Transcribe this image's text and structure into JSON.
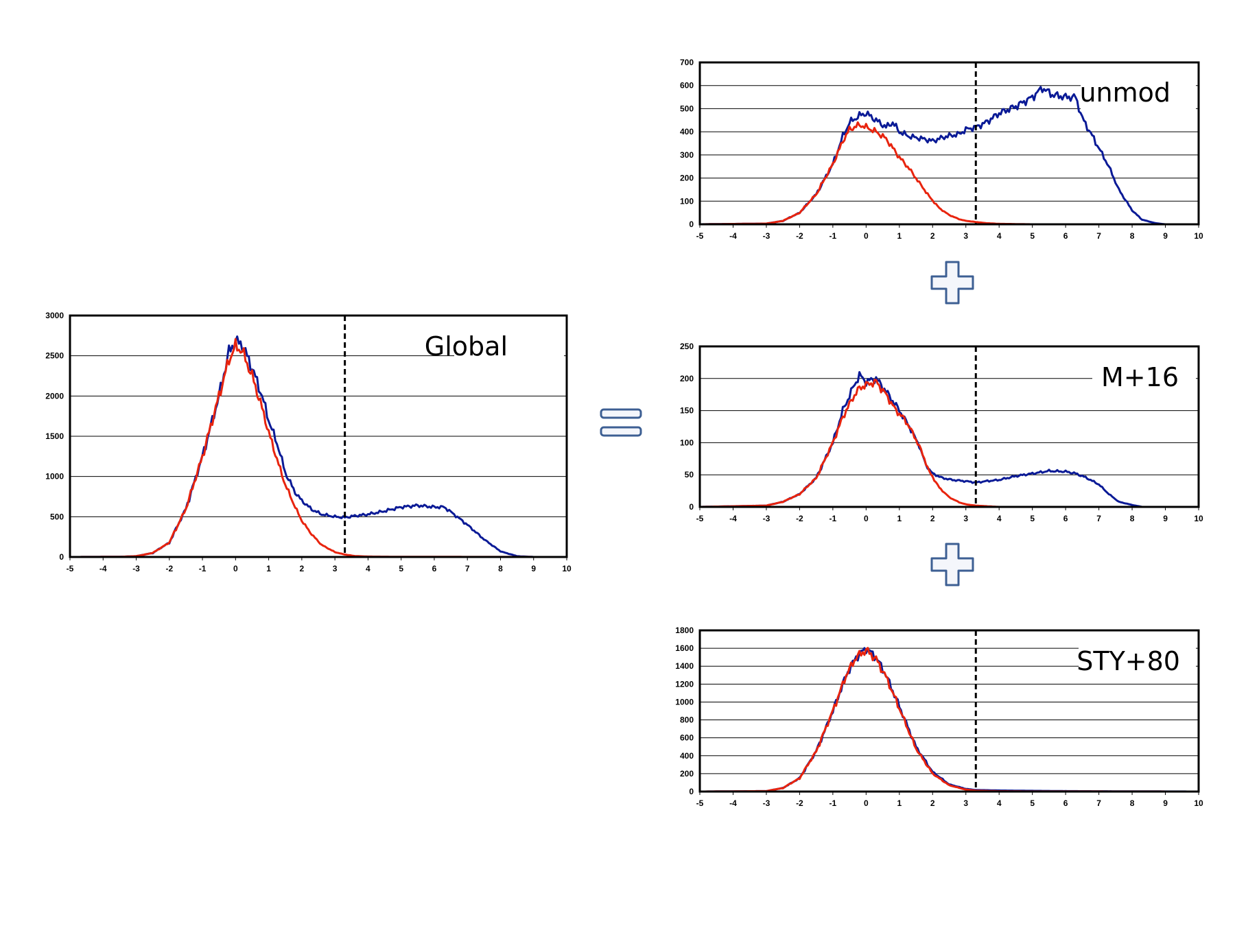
{
  "colors": {
    "blue": "#0a1a96",
    "red": "#e8240e",
    "symbol_fill": "#f4f6fb",
    "symbol_stroke": "#3d5f93"
  },
  "symbols": {
    "equals": "equals-icon",
    "plus": "plus-icon"
  },
  "charts": [
    {
      "id": "global",
      "type": "line",
      "label": "Global",
      "xlim": [
        -5,
        10
      ],
      "xticks": [
        -5,
        -4,
        -3,
        -2,
        -1,
        0,
        1,
        2,
        3,
        4,
        5,
        6,
        7,
        8,
        9,
        10
      ],
      "ylim": [
        0,
        3000
      ],
      "yticks": [
        0,
        500,
        1000,
        1500,
        2000,
        2500,
        3000
      ],
      "vline_x": 3.3,
      "series": [
        {
          "color": "blue",
          "points": [
            [
              -5,
              0
            ],
            [
              -3.5,
              2
            ],
            [
              -3,
              10
            ],
            [
              -2.5,
              50
            ],
            [
              -2,
              180
            ],
            [
              -1.5,
              600
            ],
            [
              -1,
              1250
            ],
            [
              -0.5,
              2000
            ],
            [
              -0.2,
              2550
            ],
            [
              0,
              2680
            ],
            [
              0.2,
              2640
            ],
            [
              0.5,
              2350
            ],
            [
              0.8,
              2000
            ],
            [
              1,
              1700
            ],
            [
              1.3,
              1350
            ],
            [
              1.5,
              1050
            ],
            [
              1.8,
              800
            ],
            [
              2,
              700
            ],
            [
              2.3,
              590
            ],
            [
              2.6,
              530
            ],
            [
              3,
              500
            ],
            [
              3.3,
              490
            ],
            [
              3.6,
              510
            ],
            [
              4,
              530
            ],
            [
              4.5,
              570
            ],
            [
              5,
              620
            ],
            [
              5.5,
              640
            ],
            [
              6,
              620
            ],
            [
              6.3,
              620
            ],
            [
              6.5,
              560
            ],
            [
              7,
              400
            ],
            [
              7.5,
              220
            ],
            [
              8,
              70
            ],
            [
              8.5,
              10
            ],
            [
              9,
              0
            ],
            [
              10,
              0
            ]
          ]
        },
        {
          "color": "red",
          "points": [
            [
              -5,
              0
            ],
            [
              -3.5,
              2
            ],
            [
              -3,
              10
            ],
            [
              -2.5,
              50
            ],
            [
              -2,
              180
            ],
            [
              -1.5,
              600
            ],
            [
              -1,
              1250
            ],
            [
              -0.5,
              2000
            ],
            [
              -0.2,
              2450
            ],
            [
              0,
              2620
            ],
            [
              0.2,
              2560
            ],
            [
              0.5,
              2250
            ],
            [
              0.8,
              1850
            ],
            [
              1,
              1550
            ],
            [
              1.3,
              1150
            ],
            [
              1.5,
              900
            ],
            [
              1.8,
              620
            ],
            [
              2,
              450
            ],
            [
              2.3,
              280
            ],
            [
              2.6,
              150
            ],
            [
              3,
              60
            ],
            [
              3.3,
              30
            ],
            [
              3.6,
              12
            ],
            [
              4,
              5
            ],
            [
              5,
              2
            ],
            [
              10,
              0
            ]
          ]
        }
      ]
    },
    {
      "id": "unmod",
      "type": "line",
      "label": "unmod",
      "xlim": [
        -5,
        10
      ],
      "xticks": [
        -5,
        -4,
        -3,
        -2,
        -1,
        0,
        1,
        2,
        3,
        4,
        5,
        6,
        7,
        8,
        9,
        10
      ],
      "ylim": [
        0,
        700
      ],
      "yticks": [
        0,
        100,
        200,
        300,
        400,
        500,
        600,
        700
      ],
      "vline_x": 3.3,
      "series": [
        {
          "color": "blue",
          "points": [
            [
              -5,
              0
            ],
            [
              -3,
              3
            ],
            [
              -2.5,
              15
            ],
            [
              -2,
              50
            ],
            [
              -1.5,
              130
            ],
            [
              -1,
              260
            ],
            [
              -0.7,
              380
            ],
            [
              -0.5,
              440
            ],
            [
              -0.2,
              470
            ],
            [
              0,
              480
            ],
            [
              0.3,
              450
            ],
            [
              0.6,
              420
            ],
            [
              0.8,
              440
            ],
            [
              1,
              400
            ],
            [
              1.3,
              380
            ],
            [
              1.7,
              370
            ],
            [
              2,
              360
            ],
            [
              2.4,
              380
            ],
            [
              2.8,
              390
            ],
            [
              3,
              410
            ],
            [
              3.3,
              420
            ],
            [
              3.6,
              440
            ],
            [
              4,
              480
            ],
            [
              4.5,
              510
            ],
            [
              5,
              550
            ],
            [
              5.3,
              590
            ],
            [
              5.6,
              560
            ],
            [
              6,
              550
            ],
            [
              6.3,
              550
            ],
            [
              6.5,
              460
            ],
            [
              7,
              330
            ],
            [
              7.3,
              250
            ],
            [
              7.6,
              150
            ],
            [
              8,
              60
            ],
            [
              8.3,
              20
            ],
            [
              8.7,
              5
            ],
            [
              9,
              0
            ],
            [
              10,
              0
            ]
          ]
        },
        {
          "color": "red",
          "points": [
            [
              -5,
              0
            ],
            [
              -3,
              3
            ],
            [
              -2.5,
              15
            ],
            [
              -2,
              50
            ],
            [
              -1.5,
              130
            ],
            [
              -1,
              260
            ],
            [
              -0.7,
              360
            ],
            [
              -0.5,
              410
            ],
            [
              -0.2,
              430
            ],
            [
              0,
              420
            ],
            [
              0.3,
              400
            ],
            [
              0.6,
              370
            ],
            [
              1,
              290
            ],
            [
              1.3,
              240
            ],
            [
              1.6,
              180
            ],
            [
              1.9,
              120
            ],
            [
              2.2,
              70
            ],
            [
              2.5,
              40
            ],
            [
              2.8,
              22
            ],
            [
              3,
              15
            ],
            [
              3.3,
              10
            ],
            [
              3.6,
              5
            ],
            [
              4,
              2
            ],
            [
              5,
              0
            ],
            [
              10,
              0
            ]
          ]
        }
      ]
    },
    {
      "id": "m16",
      "type": "line",
      "label": "M+16",
      "xlim": [
        -5,
        10
      ],
      "xticks": [
        -5,
        -4,
        -3,
        -2,
        -1,
        0,
        1,
        2,
        3,
        4,
        5,
        6,
        7,
        8,
        9,
        10
      ],
      "ylim": [
        0,
        250
      ],
      "yticks": [
        0,
        50,
        100,
        150,
        200,
        250
      ],
      "vline_x": 3.3,
      "series": [
        {
          "color": "blue",
          "points": [
            [
              -5,
              0
            ],
            [
              -3,
              2
            ],
            [
              -2.5,
              8
            ],
            [
              -2,
              20
            ],
            [
              -1.5,
              45
            ],
            [
              -1,
              100
            ],
            [
              -0.7,
              150
            ],
            [
              -0.4,
              185
            ],
            [
              -0.2,
              205
            ],
            [
              0,
              195
            ],
            [
              0.3,
              200
            ],
            [
              0.6,
              180
            ],
            [
              1,
              150
            ],
            [
              1.3,
              125
            ],
            [
              1.6,
              95
            ],
            [
              1.8,
              65
            ],
            [
              2,
              52
            ],
            [
              2.3,
              45
            ],
            [
              2.6,
              42
            ],
            [
              3,
              40
            ],
            [
              3.3,
              38
            ],
            [
              3.6,
              40
            ],
            [
              4,
              42
            ],
            [
              4.5,
              48
            ],
            [
              5,
              52
            ],
            [
              5.5,
              56
            ],
            [
              6,
              55
            ],
            [
              6.3,
              52
            ],
            [
              6.6,
              46
            ],
            [
              7,
              35
            ],
            [
              7.3,
              20
            ],
            [
              7.6,
              8
            ],
            [
              8,
              3
            ],
            [
              8.3,
              0
            ],
            [
              10,
              0
            ]
          ]
        },
        {
          "color": "red",
          "points": [
            [
              -5,
              0
            ],
            [
              -3,
              2
            ],
            [
              -2.5,
              8
            ],
            [
              -2,
              20
            ],
            [
              -1.5,
              45
            ],
            [
              -1,
              100
            ],
            [
              -0.7,
              140
            ],
            [
              -0.4,
              170
            ],
            [
              -0.2,
              185
            ],
            [
              0,
              190
            ],
            [
              0.3,
              195
            ],
            [
              0.6,
              175
            ],
            [
              0.9,
              150
            ],
            [
              1.1,
              140
            ],
            [
              1.3,
              125
            ],
            [
              1.6,
              95
            ],
            [
              1.9,
              55
            ],
            [
              2.2,
              30
            ],
            [
              2.5,
              15
            ],
            [
              2.8,
              7
            ],
            [
              3,
              4
            ],
            [
              3.3,
              2
            ],
            [
              4,
              0
            ],
            [
              10,
              0
            ]
          ]
        }
      ]
    },
    {
      "id": "sty80",
      "type": "line",
      "label": "STY+80",
      "xlim": [
        -5,
        10
      ],
      "xticks": [
        -5,
        -4,
        -3,
        -2,
        -1,
        0,
        1,
        2,
        3,
        4,
        5,
        6,
        7,
        8,
        9,
        10
      ],
      "ylim": [
        0,
        1800
      ],
      "yticks": [
        0,
        200,
        400,
        600,
        800,
        1000,
        1200,
        1400,
        1600,
        1800
      ],
      "vline_x": 3.3,
      "series": [
        {
          "color": "blue",
          "points": [
            [
              -5,
              0
            ],
            [
              -3,
              5
            ],
            [
              -2.5,
              40
            ],
            [
              -2,
              150
            ],
            [
              -1.5,
              450
            ],
            [
              -1,
              900
            ],
            [
              -0.6,
              1300
            ],
            [
              -0.3,
              1500
            ],
            [
              0,
              1600
            ],
            [
              0.3,
              1500
            ],
            [
              0.6,
              1300
            ],
            [
              1,
              950
            ],
            [
              1.5,
              500
            ],
            [
              2,
              220
            ],
            [
              2.5,
              80
            ],
            [
              3,
              30
            ],
            [
              3.3,
              18
            ],
            [
              4,
              12
            ],
            [
              5,
              8
            ],
            [
              6,
              5
            ],
            [
              7,
              3
            ],
            [
              8,
              2
            ],
            [
              10,
              0
            ]
          ]
        },
        {
          "color": "red",
          "points": [
            [
              -5,
              0
            ],
            [
              -3,
              5
            ],
            [
              -2.5,
              40
            ],
            [
              -2,
              150
            ],
            [
              -1.5,
              450
            ],
            [
              -1,
              900
            ],
            [
              -0.6,
              1300
            ],
            [
              -0.3,
              1500
            ],
            [
              0,
              1580
            ],
            [
              0.3,
              1480
            ],
            [
              0.6,
              1280
            ],
            [
              1,
              930
            ],
            [
              1.5,
              480
            ],
            [
              2,
              200
            ],
            [
              2.5,
              70
            ],
            [
              3,
              22
            ],
            [
              3.3,
              10
            ],
            [
              4,
              4
            ],
            [
              5,
              2
            ],
            [
              10,
              0
            ]
          ]
        }
      ]
    }
  ]
}
